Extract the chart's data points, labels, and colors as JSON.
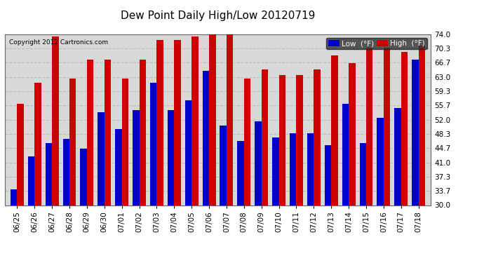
{
  "title": "Dew Point Daily High/Low 20120719",
  "copyright": "Copyright 2012 Cartronics.com",
  "categories": [
    "06/25",
    "06/26",
    "06/27",
    "06/28",
    "06/29",
    "06/30",
    "07/01",
    "07/02",
    "07/03",
    "07/04",
    "07/05",
    "07/06",
    "07/07",
    "07/08",
    "07/09",
    "07/10",
    "07/11",
    "07/12",
    "07/13",
    "07/14",
    "07/15",
    "07/16",
    "07/17",
    "07/18"
  ],
  "low_values": [
    34.0,
    42.5,
    46.0,
    47.0,
    44.5,
    54.0,
    49.5,
    54.5,
    61.5,
    54.5,
    57.0,
    64.5,
    50.5,
    46.5,
    51.5,
    47.5,
    48.5,
    48.5,
    45.5,
    56.0,
    46.0,
    52.5,
    55.0,
    67.5
  ],
  "high_values": [
    56.0,
    61.5,
    73.5,
    62.5,
    67.5,
    67.5,
    62.5,
    67.5,
    72.5,
    72.5,
    73.5,
    74.0,
    74.0,
    62.5,
    65.0,
    63.5,
    63.5,
    65.0,
    68.5,
    66.5,
    70.5,
    70.5,
    69.5,
    71.0
  ],
  "low_color": "#0000cc",
  "high_color": "#cc0000",
  "bg_color": "#ffffff",
  "plot_bg_color": "#d8d8d8",
  "grid_color": "#bbbbbb",
  "ylim": [
    30.0,
    74.0
  ],
  "yticks": [
    30.0,
    33.7,
    37.3,
    41.0,
    44.7,
    48.3,
    52.0,
    55.7,
    59.3,
    63.0,
    66.7,
    70.3,
    74.0
  ],
  "bar_width": 0.38,
  "legend_low": "Low  (°F)",
  "legend_high": "High  (°F)"
}
